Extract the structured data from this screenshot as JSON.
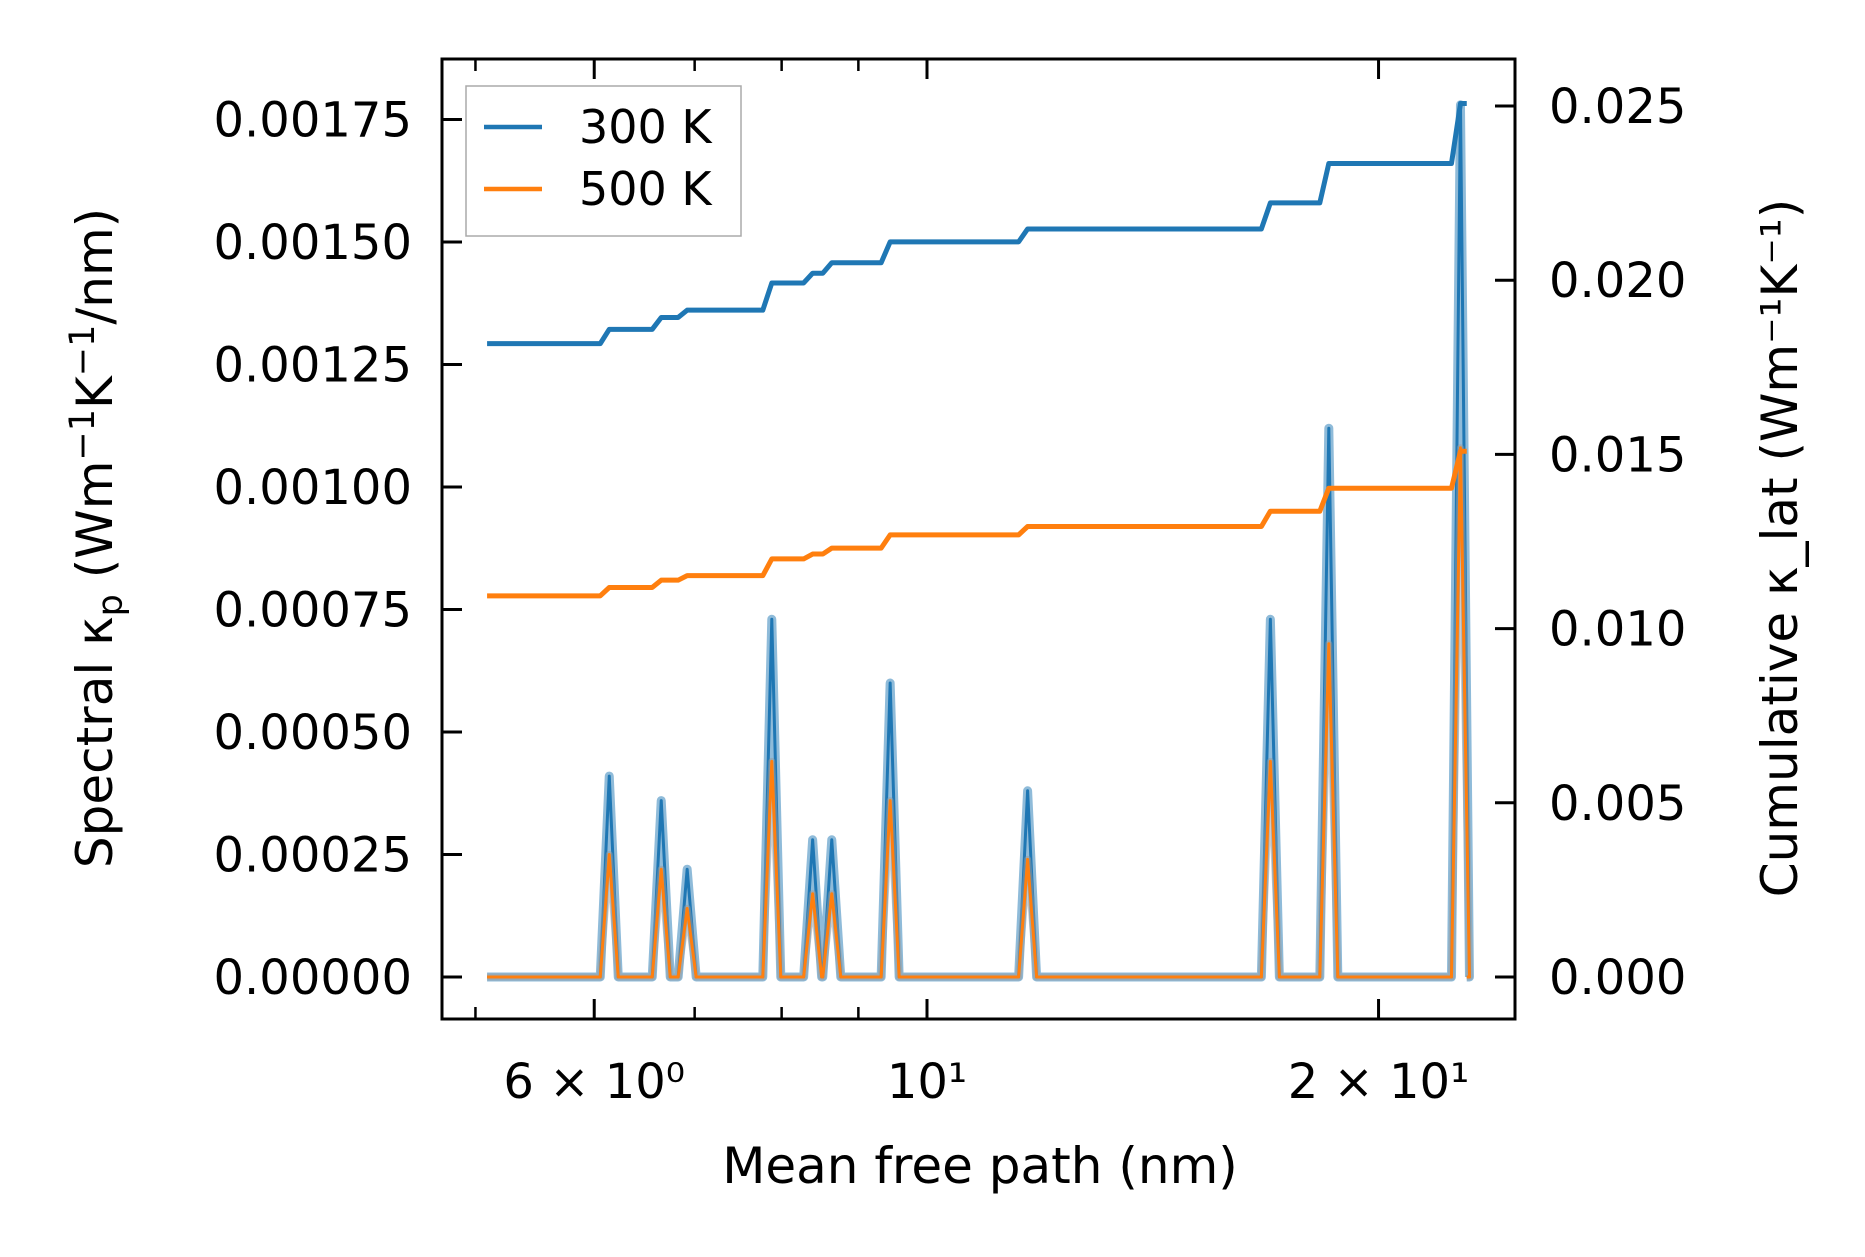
{
  "chart_data": {
    "type": "line",
    "xscale": "log",
    "xlabel": "Mean free path (nm)",
    "ylabel_left": "Spectral κ_p (Wm⁻¹K⁻¹/nm)",
    "ylabel_right": "Cumulative κ_lat (Wm⁻¹K⁻¹)",
    "xlim": [
      4.8,
      25.5
    ],
    "ylim_left": [
      -0.0001,
      0.00188
    ],
    "ylim_right": [
      -0.0013,
      0.0263
    ],
    "x_ticks": [
      {
        "value": 6,
        "label": "6 × 10⁰"
      },
      {
        "value": 10,
        "label": "10¹"
      },
      {
        "value": 20,
        "label": "2 × 10¹"
      }
    ],
    "x_minor_ticks": [
      4,
      5,
      7,
      8,
      9
    ],
    "y_left_ticks": [
      "0.00000",
      "0.00025",
      "0.00050",
      "0.00075",
      "0.00100",
      "0.00125",
      "0.00150",
      "0.00175"
    ],
    "y_right_ticks": [
      "0.000",
      "0.005",
      "0.010",
      "0.015",
      "0.020",
      "0.025"
    ],
    "x_range": [
      5.09,
      22.9
    ],
    "spike_x": [
      6.14,
      6.65,
      6.92,
      7.88,
      8.39,
      8.64,
      9.45,
      11.67,
      16.94,
      18.53,
      22.68
    ],
    "legend": {
      "placement": "upper-left"
    },
    "series": [
      {
        "name": "300 K",
        "color": "#1f77b4",
        "spectral": [
          0.00041,
          0.00036,
          0.00022,
          0.00073,
          0.00028,
          0.00028,
          0.0006,
          0.00038,
          0.00073,
          0.00112,
          0.00178
        ],
        "cumulative_start": 0.01818,
        "cumulative": [
          0.01859,
          0.01893,
          0.01914,
          0.01992,
          0.0202,
          0.0205,
          0.0211,
          0.02147,
          0.02222,
          0.02335,
          0.02507
        ]
      },
      {
        "name": "500 K",
        "color": "#ff7f0e",
        "spectral": [
          0.00025,
          0.00022,
          0.00014,
          0.00044,
          0.00017,
          0.00017,
          0.00036,
          0.00024,
          0.00044,
          0.00068,
          0.00108
        ],
        "cumulative_start": 0.01094,
        "cumulative": [
          0.01118,
          0.01139,
          0.01152,
          0.012,
          0.01214,
          0.01231,
          0.01269,
          0.01293,
          0.01337,
          0.01403,
          0.01509
        ]
      }
    ]
  }
}
